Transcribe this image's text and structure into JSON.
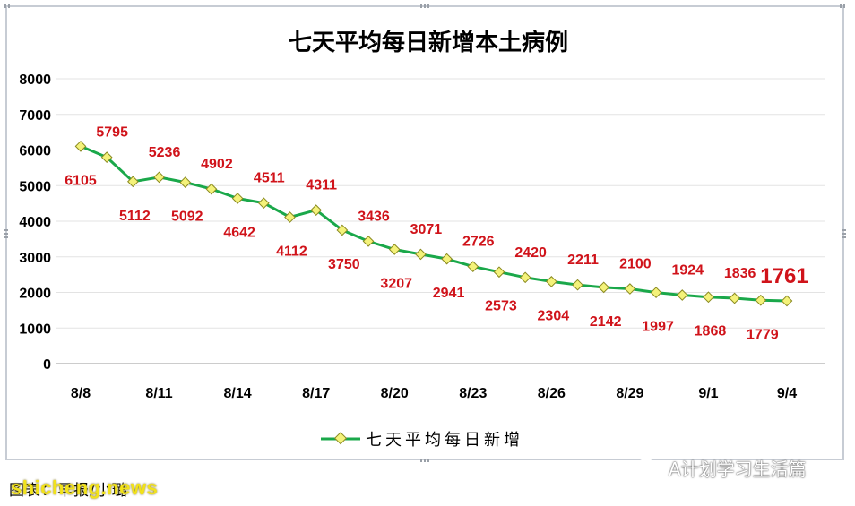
{
  "chart_data": {
    "type": "line",
    "title": "七天平均每日新增本土病例",
    "xlabel": "",
    "ylabel": "",
    "x_tick_labels": [
      "8/8",
      "8/11",
      "8/14",
      "8/17",
      "8/20",
      "8/23",
      "8/26",
      "8/29",
      "9/1",
      "9/4"
    ],
    "x_tick_indices": [
      0,
      3,
      6,
      9,
      12,
      15,
      18,
      21,
      24,
      27
    ],
    "ylim": [
      0,
      8000
    ],
    "y_ticks": [
      0,
      1000,
      2000,
      3000,
      4000,
      5000,
      6000,
      7000,
      8000
    ],
    "grid": true,
    "legend_position": "bottom-center",
    "series": [
      {
        "name": "七天平均每日新增",
        "color": "#1aa84a",
        "marker_color": "#f4f27a",
        "values": [
          6105,
          5795,
          5112,
          5236,
          5092,
          4902,
          4642,
          4511,
          4112,
          4311,
          3750,
          3436,
          3207,
          3071,
          2941,
          2726,
          2573,
          2420,
          2304,
          2211,
          2142,
          2100,
          1997,
          1924,
          1868,
          1836,
          1779,
          1761
        ]
      }
    ],
    "label_color": "#d0131a",
    "highlight_last": true
  },
  "caption": "图表：早报/小璐",
  "watermark_site": "shicheng.news",
  "watermark_wechat": "A计划学习生活篇"
}
